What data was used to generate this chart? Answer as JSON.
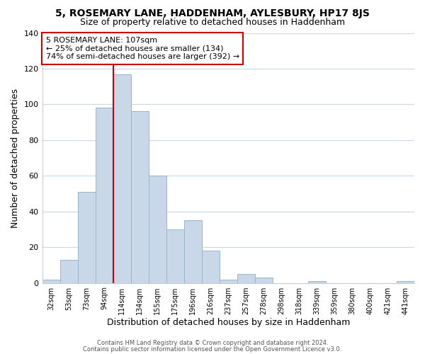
{
  "title": "5, ROSEMARY LANE, HADDENHAM, AYLESBURY, HP17 8JS",
  "subtitle": "Size of property relative to detached houses in Haddenham",
  "xlabel": "Distribution of detached houses by size in Haddenham",
  "ylabel": "Number of detached properties",
  "bar_labels": [
    "32sqm",
    "53sqm",
    "73sqm",
    "94sqm",
    "114sqm",
    "134sqm",
    "155sqm",
    "175sqm",
    "196sqm",
    "216sqm",
    "237sqm",
    "257sqm",
    "278sqm",
    "298sqm",
    "318sqm",
    "339sqm",
    "359sqm",
    "380sqm",
    "400sqm",
    "421sqm",
    "441sqm"
  ],
  "bar_values": [
    2,
    13,
    51,
    98,
    117,
    96,
    60,
    30,
    35,
    18,
    2,
    5,
    3,
    0,
    0,
    1,
    0,
    0,
    0,
    0,
    1
  ],
  "bar_color": "#c8d8e8",
  "bar_edge_color": "#9ab5cc",
  "vline_x_index": 4,
  "vline_color": "#cc0000",
  "annotation_line1": "5 ROSEMARY LANE: 107sqm",
  "annotation_line2": "← 25% of detached houses are smaller (134)",
  "annotation_line3": "74% of semi-detached houses are larger (392) →",
  "annotation_box_color": "#ffffff",
  "annotation_box_edge": "#cc0000",
  "ylim": [
    0,
    140
  ],
  "yticks": [
    0,
    20,
    40,
    60,
    80,
    100,
    120,
    140
  ],
  "footer1": "Contains HM Land Registry data © Crown copyright and database right 2024.",
  "footer2": "Contains public sector information licensed under the Open Government Licence v3.0.",
  "bg_color": "#ffffff",
  "plot_bg_color": "#ffffff",
  "grid_color": "#c8d8e8",
  "title_fontsize": 10,
  "subtitle_fontsize": 9
}
